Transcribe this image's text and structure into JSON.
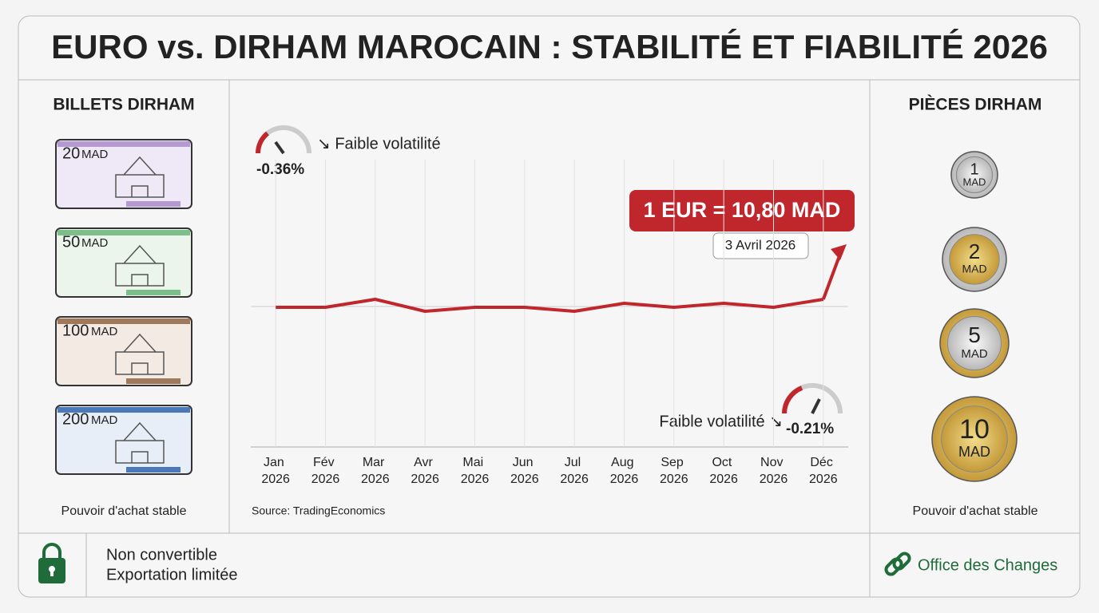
{
  "header": {
    "title": "EURO vs. DIRHAM MAROCAIN : STABILITÉ ET FIABILITÉ 2026"
  },
  "left_panel": {
    "title": "BILLETS DIRHAM",
    "notes": [
      {
        "amount": "20",
        "unit": "MAD"
      },
      {
        "amount": "50",
        "unit": "MAD"
      },
      {
        "amount": "100",
        "unit": "MAD"
      },
      {
        "amount": "200",
        "unit": "MAD"
      }
    ],
    "caption": "Pouvoir d'achat stable"
  },
  "right_panel": {
    "title": "PIÈCES DIRHAM",
    "coins": [
      {
        "amount": "1",
        "unit": "MAD"
      },
      {
        "amount": "2",
        "unit": "MAD"
      },
      {
        "amount": "5",
        "unit": "MAD"
      },
      {
        "amount": "10",
        "unit": "MAD"
      }
    ],
    "caption": "Pouvoir d'achat stable"
  },
  "footer": {
    "line1": "Non convertible",
    "line2": "Exportation limitée",
    "link": "Office des Changes"
  },
  "chart_data": {
    "type": "line",
    "categories": [
      "Jan 2026",
      "Fév 2026",
      "Mar 2026",
      "Avr 2026",
      "Mai 2026",
      "Jun 2026",
      "Jul 2026",
      "Aug 2026",
      "Sep 2026",
      "Oct 2026",
      "Nov 2026",
      "Déc 2026"
    ],
    "series": [
      {
        "name": "EUR/MAD",
        "color": "#c0272d",
        "values": [
          10.79,
          10.79,
          10.81,
          10.78,
          10.79,
          10.79,
          10.78,
          10.8,
          10.79,
          10.8,
          10.79,
          10.81
        ]
      }
    ],
    "ylim": [
      10.44,
      11.16
    ],
    "annotations": {
      "callout": "1 EUR = 10,80 MAD",
      "date": "3 Avril 2026",
      "change_left": "-0.36%",
      "label_left": "↘ Faible volatilité",
      "change_right": "-0.21%",
      "label_right": "Faible volatilité ↘"
    },
    "source": "Source: TradingEconomics"
  }
}
